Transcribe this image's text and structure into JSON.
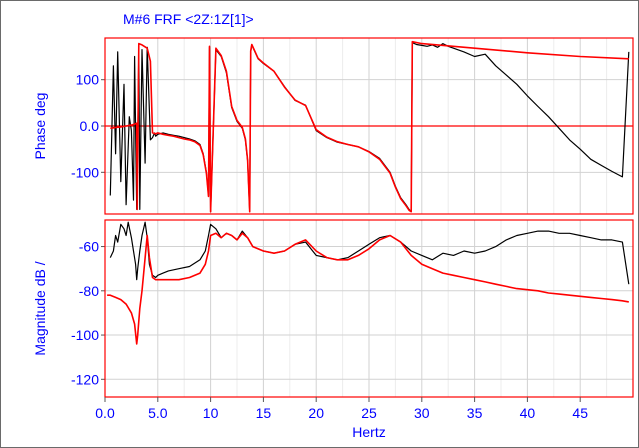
{
  "colors": {
    "grid": "#d2d2d2",
    "axis_label": "#0000ff",
    "measured": "#000000",
    "fitted": "#ff0000",
    "frame": "#ff0000"
  },
  "chart_data": {
    "type": "line",
    "title": "M#6 FRF  <2Z:1Z[1]>",
    "xlabel": "Hertz",
    "xlim": [
      0,
      50
    ],
    "xticks": [
      "0.0",
      "5.0",
      "10",
      "15",
      "20",
      "25",
      "30",
      "35",
      "40",
      "45"
    ],
    "xtick_values": [
      0,
      5,
      10,
      15,
      20,
      25,
      30,
      35,
      40,
      45
    ],
    "panels": [
      {
        "id": "phase",
        "ylabel": "Phase deg",
        "ylim": [
          -190,
          190
        ],
        "yticks": [
          "100",
          "0.0",
          "-100"
        ],
        "ytick_values": [
          100,
          0,
          -100
        ],
        "reference_line": 0,
        "series": [
          {
            "role": "measured",
            "x": [
              0.5,
              0.8,
              1.0,
              1.2,
              1.5,
              1.8,
              2.0,
              2.3,
              2.5,
              2.7,
              2.8,
              3.0,
              3.1,
              3.2,
              3.3,
              3.5,
              3.8,
              4.0,
              4.3,
              4.5,
              4.7,
              4.8,
              5.0,
              5.5,
              6.0,
              6.5,
              7.0,
              7.5,
              8.0,
              8.5,
              9.0,
              9.3,
              9.6,
              9.8,
              9.9,
              10.0,
              10.5,
              11.0,
              11.5,
              12.0,
              12.5,
              13.0,
              13.3,
              13.5,
              13.7,
              13.8,
              13.9,
              14.5,
              15.0,
              16.0,
              17.0,
              18.0,
              19.0,
              20.0,
              21.0,
              22.0,
              23.0,
              24.0,
              25.0,
              26.0,
              27.0,
              27.5,
              28.0,
              28.5,
              28.8,
              29.0,
              29.1,
              29.3,
              29.5,
              30.0,
              30.5,
              31.0,
              31.5,
              32.0,
              32.5,
              33.0,
              34.0,
              35.0,
              36.0,
              37.0,
              38.0,
              39.0,
              40.0,
              41.0,
              42.0,
              43.0,
              44.0,
              45.0,
              46.0,
              47.0,
              48.0,
              49.0,
              49.6
            ],
            "y": [
              -150,
              130,
              -60,
              160,
              -120,
              90,
              -170,
              20,
              -10,
              -160,
              150,
              -180,
              -40,
              170,
              -180,
              165,
              -80,
              170,
              -30,
              -25,
              -15,
              -22,
              -18,
              -15,
              -18,
              -20,
              -22,
              -25,
              -28,
              -32,
              -40,
              -60,
              -100,
              -150,
              170,
              -185,
              165,
              150,
              115,
              40,
              10,
              -5,
              -30,
              -75,
              -185,
              160,
              175,
              145,
              135,
              118,
              85,
              55,
              45,
              -10,
              -25,
              -35,
              -40,
              -45,
              -55,
              -70,
              -100,
              -130,
              -155,
              -170,
              -180,
              -185,
              180,
              178,
              176,
              174,
              172,
              175,
              170,
              178,
              172,
              168,
              160,
              150,
              155,
              130,
              110,
              90,
              65,
              42,
              20,
              -5,
              -30,
              -50,
              -72,
              -85,
              -98,
              -110,
              160
            ]
          },
          {
            "role": "fitted",
            "x": [
              0.5,
              1.0,
              1.5,
              2.0,
              2.5,
              2.8,
              3.0,
              3.05,
              3.2,
              3.5,
              4.0,
              4.3,
              4.5,
              4.7,
              4.8,
              5.0,
              5.5,
              6.0,
              6.5,
              7.0,
              7.5,
              8.0,
              8.5,
              9.0,
              9.3,
              9.6,
              9.8,
              9.9,
              10.0,
              10.5,
              11.0,
              11.5,
              12.0,
              12.5,
              13.0,
              13.3,
              13.5,
              13.7,
              13.8,
              13.9,
              14.5,
              15.0,
              16.0,
              17.0,
              18.0,
              19.0,
              20.0,
              21.0,
              22.0,
              23.0,
              24.0,
              25.0,
              26.0,
              27.0,
              27.5,
              28.0,
              28.5,
              28.8,
              29.0,
              29.1,
              30.0,
              35.0,
              40.0,
              45.0,
              49.6
            ],
            "y": [
              -5,
              -3,
              -2,
              0,
              2,
              4,
              6,
              -180,
              178,
              175,
              168,
              140,
              -15,
              -16,
              -17,
              -15,
              -18,
              -20,
              -22,
              -25,
              -28,
              -30,
              -34,
              -42,
              -62,
              -102,
              -152,
              172,
              -185,
              168,
              152,
              118,
              42,
              12,
              -3,
              -28,
              -73,
              -185,
              162,
              176,
              146,
              136,
              118,
              84,
              56,
              44,
              -8,
              -24,
              -34,
              -40,
              -45,
              -56,
              -72,
              -102,
              -132,
              -157,
              -172,
              -182,
              -185,
              182,
              178,
              168,
              158,
              150,
              145
            ]
          }
        ]
      },
      {
        "id": "magnitude",
        "ylabel": "Magnitude dB  /",
        "ylim": [
          -128,
          -48
        ],
        "yticks": [
          "-60",
          "-80",
          "-100",
          "-120"
        ],
        "ytick_values": [
          -60,
          -80,
          -100,
          -120
        ],
        "series": [
          {
            "role": "measured",
            "x": [
              0.5,
              0.8,
              1.0,
              1.2,
              1.5,
              1.8,
              2.0,
              2.2,
              2.5,
              2.7,
              2.9,
              3.0,
              3.1,
              3.3,
              3.5,
              3.8,
              4.0,
              4.2,
              4.5,
              4.8,
              5.0,
              5.5,
              6.0,
              7.0,
              8.0,
              9.0,
              9.5,
              9.8,
              10.0,
              10.5,
              11.0,
              11.5,
              12.0,
              12.5,
              13.0,
              13.5,
              14.0,
              15.0,
              16.0,
              17.0,
              18.0,
              19.0,
              20.0,
              21.0,
              22.0,
              23.0,
              24.0,
              25.0,
              26.0,
              27.0,
              28.0,
              29.0,
              30.0,
              31.0,
              32.0,
              33.0,
              34.0,
              35.0,
              36.0,
              37.0,
              38.0,
              39.0,
              40.0,
              41.0,
              42.0,
              43.0,
              44.0,
              45.0,
              46.0,
              47.0,
              48.0,
              49.0,
              49.6
            ],
            "y": [
              -65,
              -62,
              -55,
              -58,
              -50,
              -52,
              -55,
              -49,
              -56,
              -62,
              -68,
              -75,
              -70,
              -62,
              -55,
              -49,
              -56,
              -68,
              -73,
              -74,
              -73,
              -72,
              -71,
              -70,
              -69,
              -66,
              -62,
              -55,
              -50,
              -52,
              -56,
              -54,
              -55,
              -57,
              -53,
              -56,
              -60,
              -62,
              -63,
              -62,
              -59,
              -58,
              -64,
              -65,
              -66,
              -65,
              -62,
              -59,
              -56,
              -55,
              -58,
              -62,
              -64,
              -66,
              -63,
              -64,
              -62,
              -63,
              -62,
              -60,
              -57,
              -55,
              -54,
              -53,
              -53,
              -54,
              -54,
              -55,
              -56,
              -57,
              -57,
              -58,
              -77
            ]
          },
          {
            "role": "fitted",
            "x": [
              0.2,
              0.5,
              1.0,
              1.5,
              2.0,
              2.5,
              2.8,
              3.0,
              3.1,
              3.3,
              3.5,
              3.7,
              4.0,
              4.2,
              4.5,
              4.8,
              5.0,
              6.0,
              7.0,
              8.0,
              9.0,
              9.5,
              9.8,
              10.0,
              10.5,
              11.0,
              11.5,
              12.0,
              12.5,
              13.0,
              13.5,
              14.0,
              15.0,
              16.0,
              17.0,
              18.0,
              19.0,
              20.0,
              21.0,
              22.0,
              23.0,
              24.0,
              25.0,
              26.0,
              27.0,
              28.0,
              29.0,
              30.0,
              31.0,
              32.0,
              33.0,
              34.0,
              35.0,
              36.0,
              37.0,
              38.0,
              39.0,
              40.0,
              41.0,
              42.0,
              43.0,
              44.0,
              45.0,
              46.0,
              47.0,
              48.0,
              49.0,
              49.6
            ],
            "y": [
              -82,
              -82,
              -83,
              -84,
              -86,
              -90,
              -95,
              -104,
              -100,
              -88,
              -80,
              -70,
              -55,
              -65,
              -74,
              -75,
              -75,
              -75,
              -75,
              -74,
              -72,
              -68,
              -62,
              -55,
              -54,
              -56,
              -54,
              -55,
              -57,
              -54,
              -56,
              -60,
              -62,
              -63,
              -62,
              -59,
              -57,
              -62,
              -65,
              -66,
              -66,
              -64,
              -61,
              -57,
              -55,
              -58,
              -64,
              -68,
              -70,
              -72,
              -73,
              -74,
              -75,
              -76,
              -77,
              -78,
              -79,
              -79.5,
              -80,
              -81,
              -81.5,
              -82,
              -82.5,
              -83,
              -83.5,
              -84,
              -84.5,
              -85
            ]
          }
        ]
      }
    ]
  }
}
